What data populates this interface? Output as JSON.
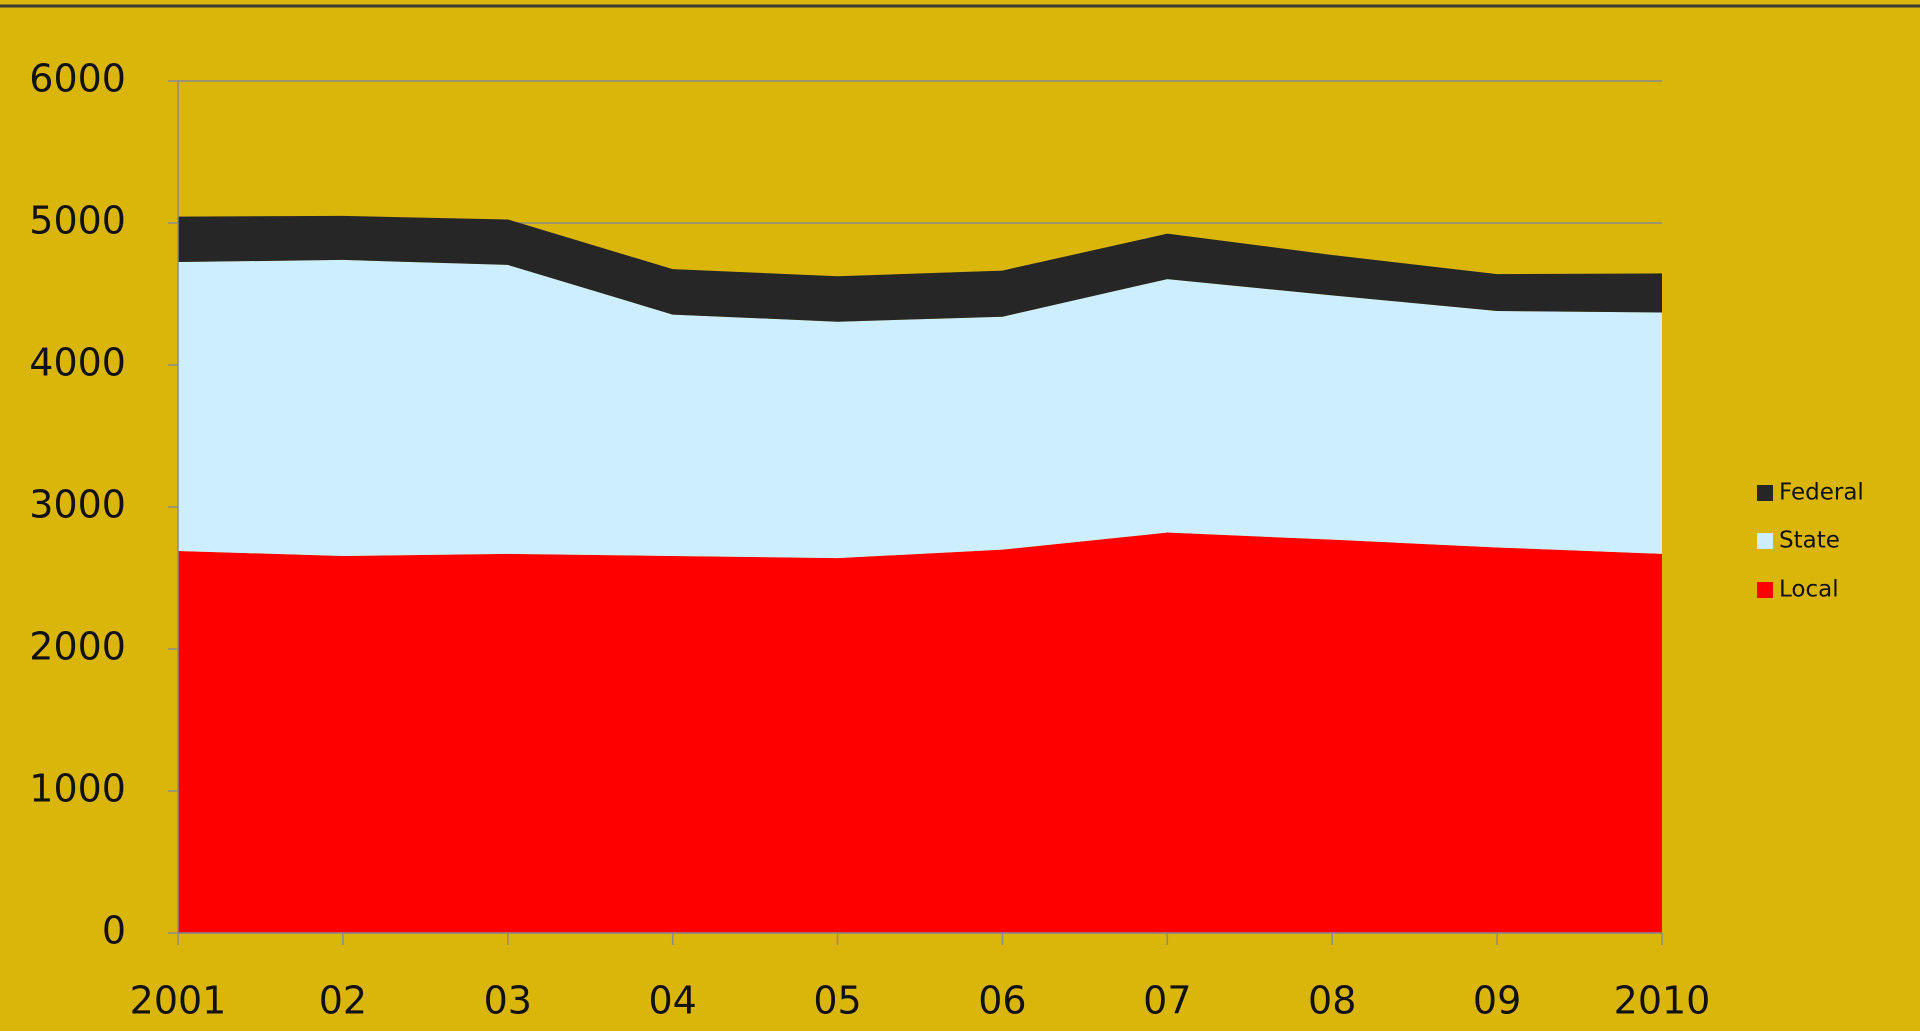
{
  "chart_data": {
    "type": "area",
    "categories": [
      "2001",
      "02",
      "03",
      "04",
      "05",
      "06",
      "07",
      "08",
      "09",
      "2010"
    ],
    "series": [
      {
        "name": "Local",
        "color": "#ff0000",
        "values": [
          2690,
          2655,
          2670,
          2655,
          2640,
          2700,
          2820,
          2770,
          2715,
          2670
        ]
      },
      {
        "name": "State",
        "color": "#cceeff",
        "values": [
          2035,
          2085,
          2035,
          1700,
          1665,
          1640,
          1785,
          1720,
          1665,
          1700
        ]
      },
      {
        "name": "Federal",
        "color": "#262626",
        "values": [
          320,
          310,
          320,
          320,
          320,
          325,
          320,
          285,
          260,
          275
        ]
      }
    ],
    "ylim": [
      0,
      6000
    ],
    "yticks": [
      0,
      1000,
      2000,
      3000,
      4000,
      5000,
      6000
    ],
    "grid": true,
    "stacked": true,
    "legend": "right"
  }
}
